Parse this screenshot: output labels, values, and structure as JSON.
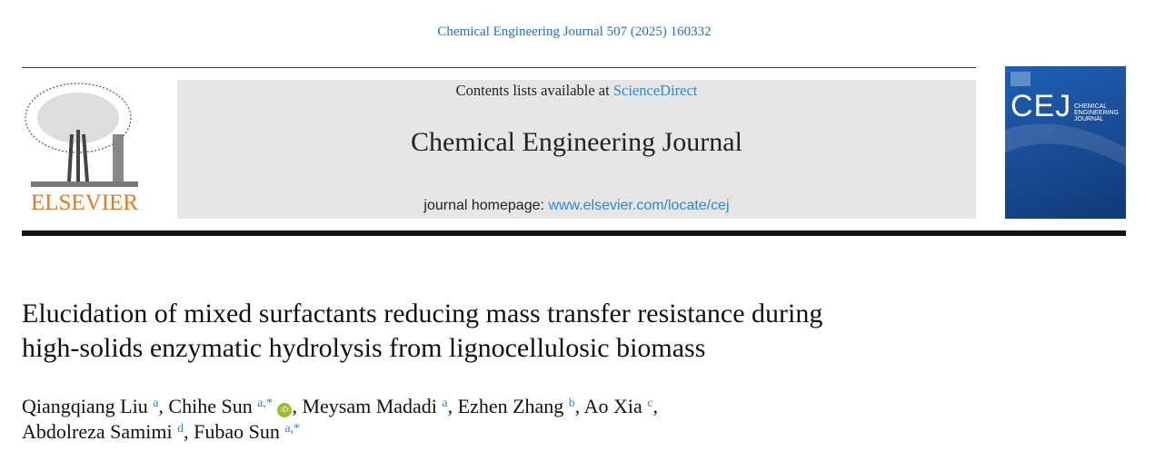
{
  "citation": "Chemical Engineering Journal 507 (2025) 160332",
  "header": {
    "contents_prefix": "Contents lists available at ",
    "contents_link": "ScienceDirect",
    "journal_name": "Chemical Engineering Journal",
    "homepage_prefix": "journal homepage: ",
    "homepage_link": "www.elsevier.com/locate/cej",
    "publisher_logo": "ELSEVIER",
    "cover": {
      "abbrev": "CEJ",
      "line1": "CHEMICAL",
      "line2": "ENGINEERING",
      "line3": "JOURNAL"
    }
  },
  "title_line1": "Elucidation of mixed surfactants reducing mass transfer resistance during",
  "title_line2": "high-solids enzymatic hydrolysis from lignocellulosic biomass",
  "authors": [
    {
      "name": "Qiangqiang Liu",
      "aff": "a"
    },
    {
      "name": "Chihe Sun",
      "aff": "a,*",
      "orcid": "iD"
    },
    {
      "name": "Meysam Madadi",
      "aff": "a"
    },
    {
      "name": "Ezhen Zhang",
      "aff": "b"
    },
    {
      "name": "Ao Xia",
      "aff": "c"
    },
    {
      "name": "Abdolreza Samimi",
      "aff": "d"
    },
    {
      "name": "Fubao Sun",
      "aff": "a,*"
    }
  ],
  "colors": {
    "link": "#2a8ad6",
    "elsevier": "#e07b1e",
    "band": "#e6e6e6",
    "orcid": "#9cbf2e"
  }
}
